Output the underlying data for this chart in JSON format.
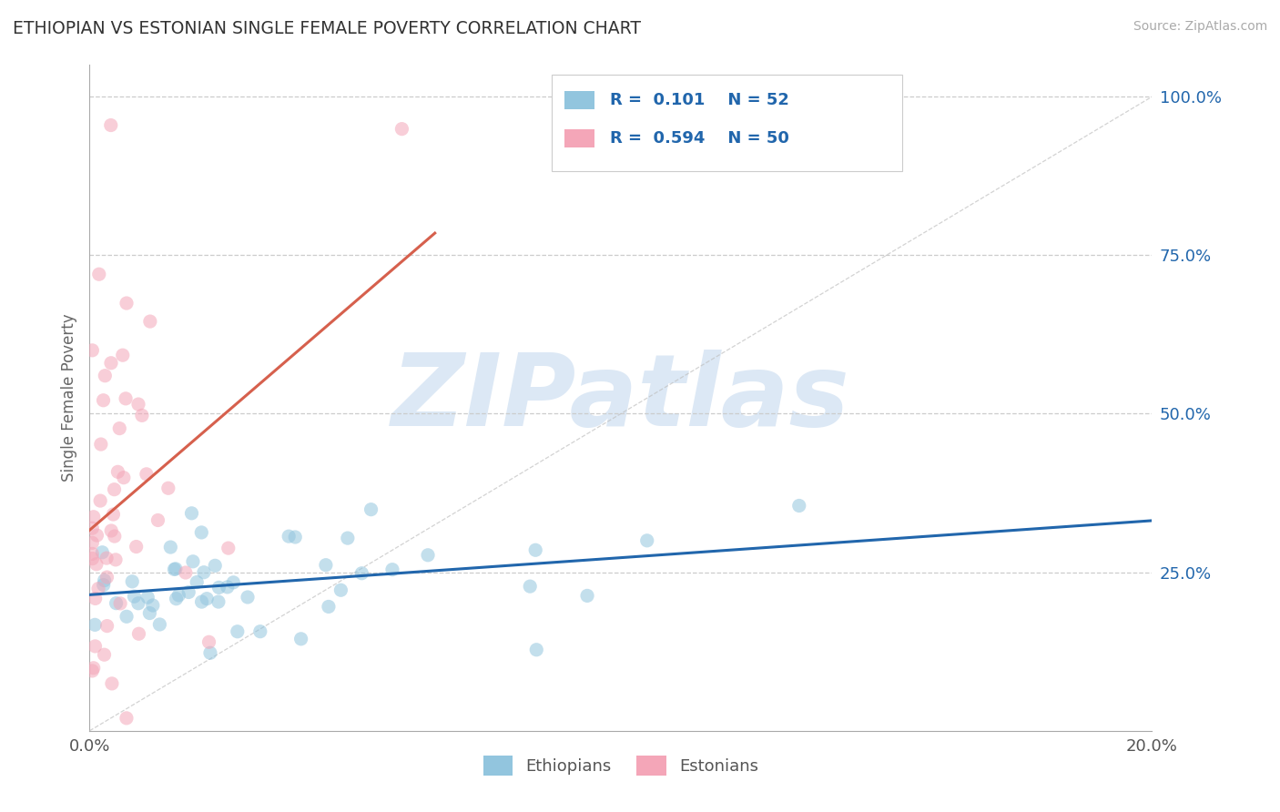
{
  "title": "ETHIOPIAN VS ESTONIAN SINGLE FEMALE POVERTY CORRELATION CHART",
  "source_text": "Source: ZipAtlas.com",
  "ylabel": "Single Female Poverty",
  "xlim": [
    0.0,
    0.2
  ],
  "ylim": [
    0.0,
    1.05
  ],
  "ytick_positions": [
    0.0,
    0.25,
    0.5,
    0.75,
    1.0
  ],
  "ytick_labels": [
    "",
    "25.0%",
    "50.0%",
    "75.0%",
    "100.0%"
  ],
  "r_ethiopian": 0.101,
  "n_ethiopian": 52,
  "r_estonian": 0.594,
  "n_estonian": 50,
  "blue_color": "#92c5de",
  "pink_color": "#f4a6b8",
  "blue_line_color": "#2166ac",
  "pink_line_color": "#d6604d",
  "legend_text_color": "#2166ac",
  "title_color": "#333333",
  "watermark_color": "#dce8f5",
  "watermark_text": "ZIPatlas",
  "background_color": "#ffffff",
  "grid_color": "#cccccc",
  "marker_size": 120,
  "marker_alpha": 0.55
}
